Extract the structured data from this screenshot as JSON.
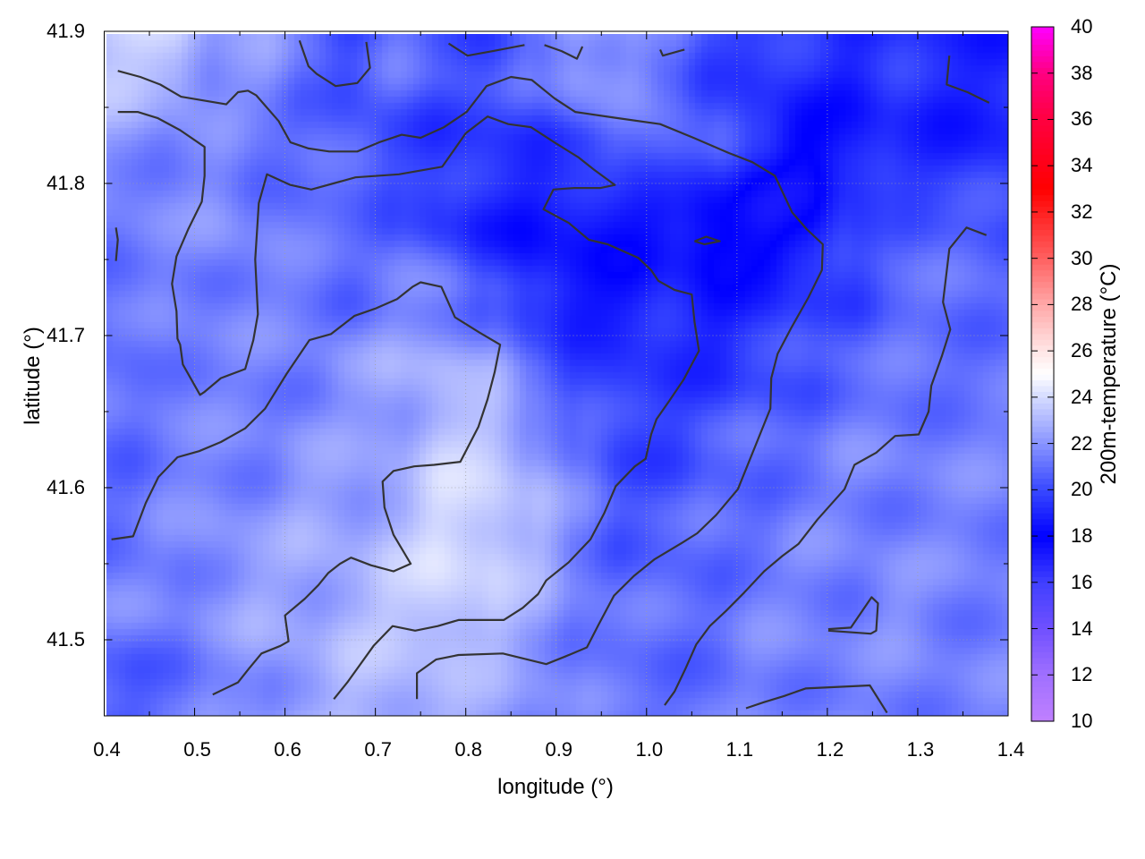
{
  "chart_data": {
    "type": "heatmap",
    "title": "",
    "xlabel": "longitude (°)",
    "ylabel": "latitude (°)",
    "colorbar_label": "200m-temperature (°C)",
    "xlim": [
      0.4,
      1.4
    ],
    "ylim": [
      41.45,
      41.9
    ],
    "xticks": [
      "0.4",
      "0.5",
      "0.6",
      "0.7",
      "0.8",
      "0.9",
      "1.0",
      "1.1",
      "1.2",
      "1.3",
      "1.4"
    ],
    "yticks": [
      "41.5",
      "41.6",
      "41.7",
      "41.8",
      "41.9"
    ],
    "cbrange": [
      10,
      40
    ],
    "cbticks": [
      "10",
      "12",
      "14",
      "16",
      "18",
      "20",
      "22",
      "24",
      "26",
      "28",
      "30",
      "32",
      "34",
      "36",
      "38",
      "40"
    ],
    "grid": true,
    "palette": [
      [
        10,
        "#c080ff"
      ],
      [
        12,
        "#a070ff"
      ],
      [
        14,
        "#7050ff"
      ],
      [
        16,
        "#4040ff"
      ],
      [
        18,
        "#0000ff"
      ],
      [
        20,
        "#3848ff"
      ],
      [
        22,
        "#8894ff"
      ],
      [
        24,
        "#d4daff"
      ],
      [
        25,
        "#ffffff"
      ],
      [
        26,
        "#ffe6e6"
      ],
      [
        28,
        "#ffa8a8"
      ],
      [
        30,
        "#ff6060"
      ],
      [
        32,
        "#ff2020"
      ],
      [
        33,
        "#ff0000"
      ],
      [
        36,
        "#ff0040"
      ],
      [
        38,
        "#ff0080"
      ],
      [
        40,
        "#ff00ff"
      ]
    ],
    "grid_lon": [
      0.425,
      0.475,
      0.525,
      0.575,
      0.625,
      0.675,
      0.725,
      0.775,
      0.825,
      0.875,
      0.925,
      0.975,
      1.025,
      1.075,
      1.125,
      1.175,
      1.225,
      1.275,
      1.325,
      1.375
    ],
    "grid_lat": [
      41.875,
      41.825,
      41.775,
      41.725,
      41.675,
      41.625,
      41.575,
      41.525,
      41.475
    ],
    "temperature": [
      [
        23.5,
        23.5,
        22,
        22,
        21,
        20,
        21,
        20.5,
        20,
        21,
        22.5,
        22,
        21,
        20,
        19.5,
        19.5,
        19,
        19.5,
        19,
        19
      ],
      [
        22,
        21.5,
        21.5,
        21,
        21,
        20.5,
        20,
        19.5,
        19.5,
        19.5,
        20,
        20.5,
        21,
        20.5,
        19,
        18,
        18.5,
        19,
        19,
        19
      ],
      [
        21.5,
        21.5,
        22,
        21.5,
        21,
        21,
        20.5,
        19.5,
        19,
        18.5,
        18.5,
        18.5,
        18.5,
        17.5,
        17.5,
        18,
        19.5,
        20.5,
        20.5,
        20.5
      ],
      [
        21,
        21.5,
        21.5,
        21.5,
        21.5,
        21,
        21.5,
        21.5,
        20.5,
        19,
        18.5,
        18.5,
        19,
        18.5,
        19,
        19.5,
        20,
        21,
        21,
        21
      ],
      [
        21,
        21.5,
        21.5,
        21.5,
        21.5,
        22,
        22.5,
        23,
        22.5,
        21,
        20,
        19.5,
        19.5,
        19.5,
        20,
        20.5,
        21,
        21,
        21,
        21
      ],
      [
        21,
        21.5,
        21.5,
        21.5,
        22,
        22,
        22.5,
        23.5,
        23.5,
        22.5,
        21,
        20,
        20,
        20.5,
        21,
        21,
        21.5,
        21.5,
        21.5,
        21.5
      ],
      [
        21,
        21.5,
        22,
        22,
        22.5,
        22.5,
        23,
        24,
        24,
        23,
        21.5,
        20.5,
        20.5,
        21,
        21,
        21.5,
        21.5,
        21.5,
        21.5,
        21.5
      ],
      [
        21.5,
        21.5,
        22,
        22.5,
        22.5,
        23,
        23.5,
        24,
        23.5,
        22.5,
        21.5,
        21,
        21,
        21,
        21.5,
        21.5,
        21.5,
        22,
        21.5,
        21.5
      ],
      [
        20.5,
        21,
        21.5,
        22,
        22.5,
        23,
        23,
        23,
        22.5,
        22,
        21.5,
        21,
        21,
        21,
        21.5,
        21.5,
        21.5,
        21.5,
        21.5,
        21.5
      ]
    ],
    "contour_color": "#333333",
    "contours": [
      [
        [
          0.415,
          41.874
        ],
        [
          0.44,
          41.87
        ],
        [
          0.462,
          41.865
        ],
        [
          0.485,
          41.857
        ],
        [
          0.535,
          41.852
        ],
        [
          0.548,
          41.86
        ],
        [
          0.559,
          41.861
        ],
        [
          0.568,
          41.858
        ],
        [
          0.593,
          41.841
        ],
        [
          0.606,
          41.827
        ],
        [
          0.626,
          41.823
        ],
        [
          0.649,
          41.821
        ],
        [
          0.68,
          41.821
        ],
        [
          0.704,
          41.827
        ],
        [
          0.729,
          41.832
        ],
        [
          0.75,
          41.83
        ],
        [
          0.776,
          41.837
        ],
        [
          0.801,
          41.847
        ],
        [
          0.823,
          41.864
        ],
        [
          0.85,
          41.87
        ],
        [
          0.873,
          41.868
        ],
        [
          0.898,
          41.856
        ],
        [
          0.921,
          41.847
        ],
        [
          0.967,
          41.843
        ],
        [
          1.015,
          41.839
        ],
        [
          1.052,
          41.83
        ],
        [
          1.091,
          41.82
        ],
        [
          1.117,
          41.814
        ],
        [
          1.142,
          41.805
        ],
        [
          1.161,
          41.781
        ],
        [
          1.177,
          41.77
        ],
        [
          1.195,
          41.76
        ],
        [
          1.194,
          41.743
        ],
        [
          1.179,
          41.725
        ],
        [
          1.16,
          41.705
        ],
        [
          1.145,
          41.688
        ],
        [
          1.138,
          41.672
        ],
        [
          1.137,
          41.652
        ],
        [
          1.12,
          41.627
        ],
        [
          1.101,
          41.599
        ],
        [
          1.077,
          41.582
        ],
        [
          1.056,
          41.57
        ],
        [
          1.04,
          41.564
        ],
        [
          1.009,
          41.553
        ],
        [
          0.986,
          41.542
        ],
        [
          0.964,
          41.529
        ],
        [
          0.947,
          41.51
        ],
        [
          0.934,
          41.495
        ],
        [
          0.91,
          41.489
        ],
        [
          0.889,
          41.484
        ],
        [
          0.841,
          41.491
        ],
        [
          0.792,
          41.49
        ],
        [
          0.767,
          41.487
        ],
        [
          0.746,
          41.478
        ],
        [
          0.746,
          41.461
        ]
      ],
      [
        [
          0.415,
          41.847
        ],
        [
          0.437,
          41.847
        ],
        [
          0.459,
          41.843
        ],
        [
          0.484,
          41.835
        ],
        [
          0.511,
          41.824
        ],
        [
          0.511,
          41.805
        ],
        [
          0.508,
          41.788
        ],
        [
          0.493,
          41.77
        ],
        [
          0.48,
          41.752
        ],
        [
          0.475,
          41.734
        ],
        [
          0.48,
          41.716
        ],
        [
          0.481,
          41.698
        ],
        [
          0.484,
          41.694
        ],
        [
          0.487,
          41.681
        ],
        [
          0.506,
          41.661
        ],
        [
          0.511,
          41.663
        ],
        [
          0.529,
          41.672
        ],
        [
          0.556,
          41.678
        ],
        [
          0.565,
          41.697
        ],
        [
          0.57,
          41.714
        ],
        [
          0.567,
          41.75
        ],
        [
          0.571,
          41.787
        ],
        [
          0.58,
          41.806
        ],
        [
          0.606,
          41.799
        ],
        [
          0.629,
          41.796
        ],
        [
          0.678,
          41.804
        ],
        [
          0.726,
          41.806
        ],
        [
          0.774,
          41.811
        ],
        [
          0.8,
          41.833
        ],
        [
          0.824,
          41.844
        ],
        [
          0.847,
          41.839
        ],
        [
          0.872,
          41.837
        ],
        [
          0.898,
          41.827
        ],
        [
          0.925,
          41.817
        ],
        [
          0.942,
          41.809
        ],
        [
          0.965,
          41.799
        ],
        [
          0.949,
          41.797
        ],
        [
          0.92,
          41.797
        ],
        [
          0.897,
          41.796
        ],
        [
          0.886,
          41.783
        ],
        [
          0.914,
          41.774
        ],
        [
          0.936,
          41.763
        ],
        [
          0.957,
          41.76
        ],
        [
          0.972,
          41.756
        ],
        [
          0.991,
          41.751
        ],
        [
          1.005,
          41.743
        ],
        [
          1.013,
          41.736
        ],
        [
          1.031,
          41.73
        ],
        [
          1.05,
          41.727
        ],
        [
          1.053,
          41.709
        ],
        [
          1.058,
          41.69
        ],
        [
          1.041,
          41.671
        ],
        [
          1.025,
          41.657
        ],
        [
          1.011,
          41.645
        ],
        [
          1.005,
          41.635
        ],
        [
          0.999,
          41.619
        ],
        [
          0.987,
          41.614
        ],
        [
          0.966,
          41.601
        ],
        [
          0.953,
          41.583
        ],
        [
          0.938,
          41.566
        ],
        [
          0.914,
          41.551
        ],
        [
          0.889,
          41.539
        ],
        [
          0.88,
          41.53
        ],
        [
          0.863,
          41.521
        ],
        [
          0.842,
          41.513
        ],
        [
          0.792,
          41.513
        ],
        [
          0.769,
          41.509
        ],
        [
          0.744,
          41.506
        ],
        [
          0.719,
          41.509
        ],
        [
          0.698,
          41.496
        ],
        [
          0.681,
          41.482
        ],
        [
          0.669,
          41.472
        ],
        [
          0.654,
          41.461
        ]
      ],
      [
        [
          0.408,
          41.566
        ],
        [
          0.432,
          41.568
        ],
        [
          0.446,
          41.59
        ],
        [
          0.46,
          41.607
        ],
        [
          0.481,
          41.62
        ],
        [
          0.505,
          41.624
        ],
        [
          0.529,
          41.63
        ],
        [
          0.556,
          41.639
        ],
        [
          0.578,
          41.652
        ],
        [
          0.602,
          41.675
        ],
        [
          0.627,
          41.697
        ],
        [
          0.651,
          41.701
        ],
        [
          0.677,
          41.713
        ],
        [
          0.701,
          41.718
        ],
        [
          0.724,
          41.724
        ],
        [
          0.741,
          41.732
        ],
        [
          0.75,
          41.735
        ],
        [
          0.773,
          41.732
        ],
        [
          0.788,
          41.712
        ],
        [
          0.815,
          41.702
        ],
        [
          0.838,
          41.694
        ],
        [
          0.832,
          41.676
        ],
        [
          0.824,
          41.658
        ],
        [
          0.814,
          41.64
        ],
        [
          0.794,
          41.617
        ],
        [
          0.765,
          41.615
        ],
        [
          0.743,
          41.614
        ],
        [
          0.72,
          41.611
        ],
        [
          0.708,
          41.604
        ],
        [
          0.71,
          41.587
        ],
        [
          0.72,
          41.569
        ],
        [
          0.739,
          41.55
        ],
        [
          0.72,
          41.545
        ],
        [
          0.695,
          41.549
        ],
        [
          0.673,
          41.554
        ],
        [
          0.661,
          41.55
        ],
        [
          0.648,
          41.544
        ],
        [
          0.637,
          41.536
        ],
        [
          0.622,
          41.527
        ],
        [
          0.6,
          41.516
        ],
        [
          0.604,
          41.499
        ],
        [
          0.595,
          41.496
        ],
        [
          0.574,
          41.491
        ],
        [
          0.56,
          41.481
        ],
        [
          0.548,
          41.472
        ],
        [
          0.52,
          41.464
        ]
      ],
      [
        [
          1.376,
          41.766
        ],
        [
          1.354,
          41.771
        ],
        [
          1.335,
          41.757
        ],
        [
          1.328,
          41.722
        ],
        [
          1.336,
          41.704
        ],
        [
          1.327,
          41.687
        ],
        [
          1.315,
          41.667
        ],
        [
          1.312,
          41.65
        ],
        [
          1.301,
          41.635
        ],
        [
          1.275,
          41.634
        ],
        [
          1.254,
          41.623
        ],
        [
          1.23,
          41.615
        ],
        [
          1.219,
          41.599
        ],
        [
          1.189,
          41.579
        ],
        [
          1.168,
          41.563
        ],
        [
          1.15,
          41.555
        ],
        [
          1.13,
          41.545
        ],
        [
          1.108,
          41.531
        ],
        [
          1.088,
          41.519
        ],
        [
          1.07,
          41.509
        ],
        [
          1.055,
          41.497
        ],
        [
          1.043,
          41.481
        ],
        [
          1.031,
          41.466
        ],
        [
          1.02,
          41.457
        ]
      ],
      [
        [
          0.616,
          41.894
        ],
        [
          0.626,
          41.877
        ],
        [
          0.635,
          41.872
        ],
        [
          0.656,
          41.864
        ],
        [
          0.68,
          41.866
        ],
        [
          0.694,
          41.876
        ],
        [
          0.69,
          41.893
        ]
      ],
      [
        [
          0.781,
          41.892
        ],
        [
          0.802,
          41.884
        ],
        [
          0.83,
          41.887
        ],
        [
          0.865,
          41.891
        ]
      ],
      [
        [
          0.887,
          41.891
        ],
        [
          0.906,
          41.887
        ],
        [
          0.923,
          41.882
        ],
        [
          0.929,
          41.89
        ]
      ],
      [
        [
          1.015,
          41.888
        ],
        [
          1.018,
          41.884
        ],
        [
          1.042,
          41.888
        ]
      ],
      [
        [
          1.335,
          41.884
        ],
        [
          1.332,
          41.865
        ],
        [
          1.355,
          41.86
        ],
        [
          1.379,
          41.853
        ]
      ],
      [
        [
          0.413,
          41.771
        ],
        [
          0.415,
          41.763
        ],
        [
          0.413,
          41.749
        ]
      ],
      [
        [
          1.053,
          41.762
        ],
        [
          1.066,
          41.765
        ],
        [
          1.081,
          41.762
        ],
        [
          1.064,
          41.76
        ],
        [
          1.053,
          41.762
        ]
      ],
      [
        [
          1.201,
          41.507
        ],
        [
          1.226,
          41.508
        ],
        [
          1.249,
          41.528
        ],
        [
          1.256,
          41.524
        ],
        [
          1.254,
          41.506
        ],
        [
          1.248,
          41.504
        ],
        [
          1.201,
          41.506
        ]
      ],
      [
        [
          1.11,
          41.455
        ],
        [
          1.13,
          41.459
        ],
        [
          1.152,
          41.463
        ],
        [
          1.176,
          41.468
        ],
        [
          1.247,
          41.47
        ],
        [
          1.266,
          41.452
        ]
      ]
    ]
  }
}
